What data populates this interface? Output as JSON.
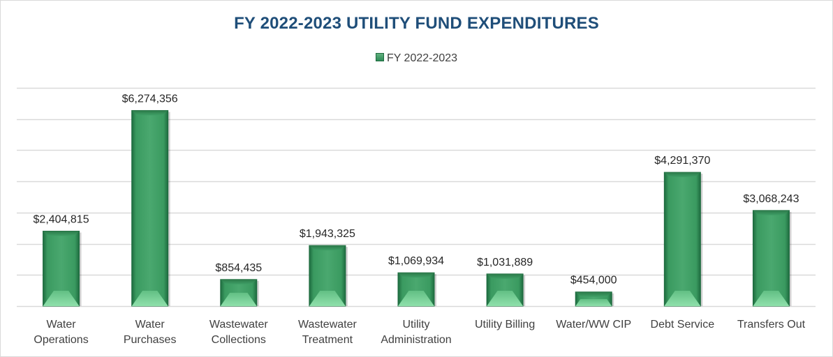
{
  "chart_data": {
    "type": "bar",
    "title": "FY 2022-2023 UTILITY FUND EXPENDITURES",
    "legend": {
      "position": "top",
      "entries": [
        "FY 2022-2023"
      ]
    },
    "categories": [
      [
        "Water",
        "Operations"
      ],
      [
        "Water",
        "Purchases"
      ],
      [
        "Wastewater",
        "Collections"
      ],
      [
        "Wastewater",
        "Treatment"
      ],
      [
        "Utility",
        "Administration"
      ],
      [
        "Utility Billing"
      ],
      [
        "Water/WW CIP"
      ],
      [
        "Debt Service"
      ],
      [
        "Transfers Out"
      ]
    ],
    "series": [
      {
        "name": "FY 2022-2023",
        "values": [
          2404815,
          6274356,
          854435,
          1943325,
          1069934,
          1031889,
          454000,
          4291370,
          3068243
        ],
        "labels": [
          "$2,404,815",
          "$6,274,356",
          "$854,435",
          "$1,943,325",
          "$1,069,934",
          "$1,031,889",
          "$454,000",
          "$4,291,370",
          "$3,068,243"
        ]
      }
    ],
    "ylim": [
      0,
      7000000
    ],
    "y_grid_step": 1000000,
    "grid": true,
    "y_tick_labels_visible": false,
    "colors": {
      "bar": "#3a9a60",
      "bar_dark": "#1e6b3f",
      "bar_light": "#7fd39c",
      "grid": "#d9d9d9",
      "title": "#1f4e79"
    }
  }
}
